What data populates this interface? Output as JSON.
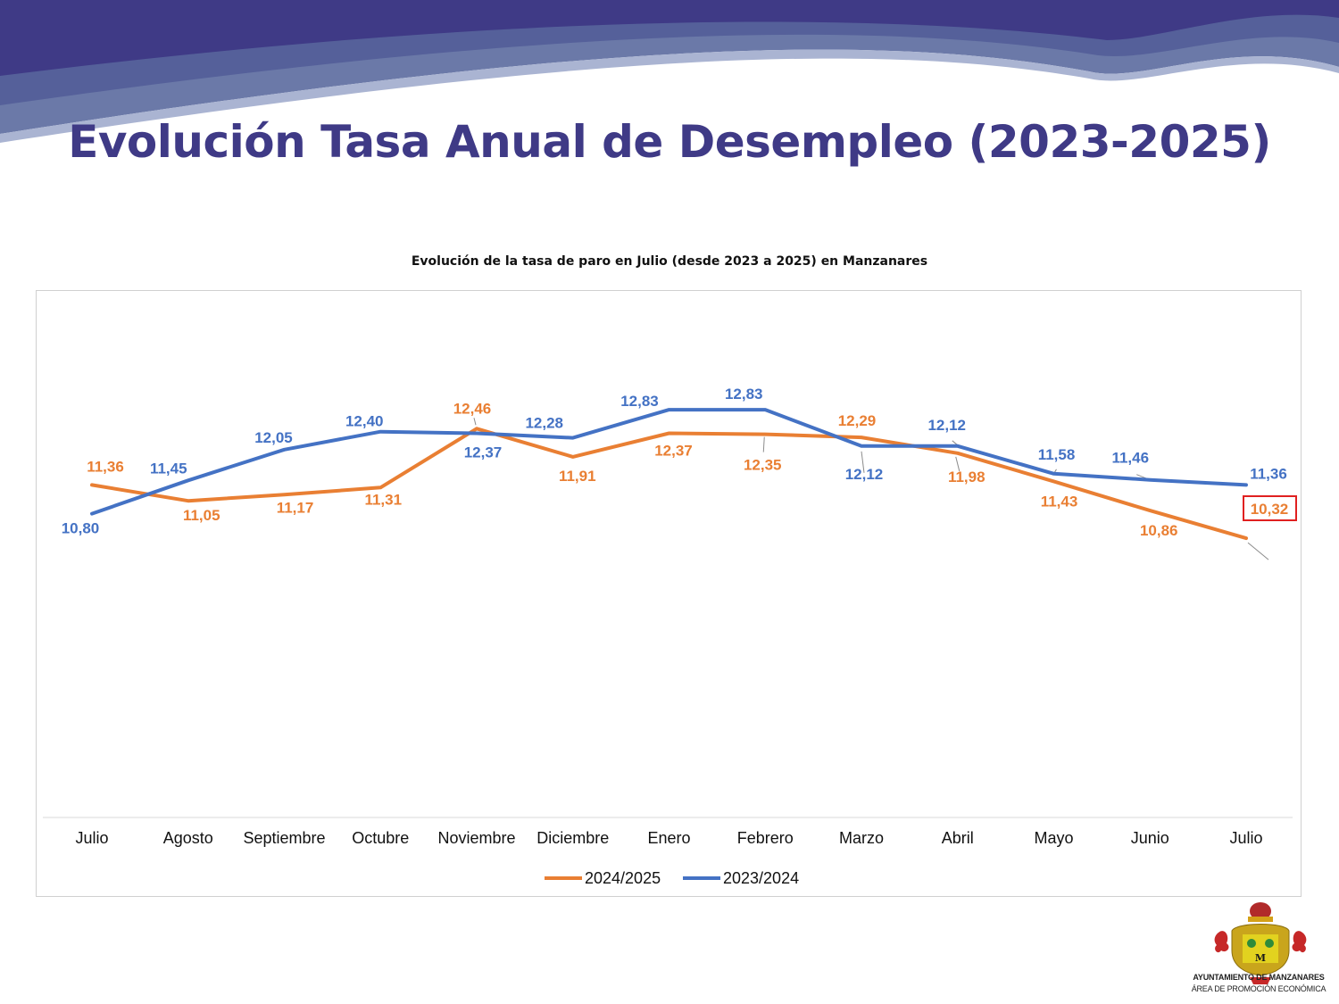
{
  "page_title": "Evolución Tasa Anual de Desempleo (2023-2025)",
  "colors": {
    "title": "#3f3a86",
    "series_2024_2025": "#e97f33",
    "series_2023_2024": "#4472c4",
    "highlight_box": "#e02020"
  },
  "chart_data": {
    "type": "line",
    "title": "Evolución de la tasa de paro en Julio (desde 2023 a  2025) en Manzanares",
    "xlabel": "",
    "ylabel": "",
    "ylim": [
      0,
      14
    ],
    "grid": false,
    "legend_position": "bottom",
    "categories": [
      "Julio",
      "Agosto",
      "Septiembre",
      "Octubre",
      "Noviembre",
      "Diciembre",
      "Enero",
      "Febrero",
      "Marzo",
      "Abril",
      "Mayo",
      "Junio",
      "Julio"
    ],
    "series": [
      {
        "name": "2024/2025",
        "color": "#e97f33",
        "values": [
          11.36,
          11.05,
          11.17,
          11.31,
          12.46,
          11.91,
          12.37,
          12.35,
          12.29,
          11.98,
          11.43,
          10.86,
          10.32
        ],
        "labels": [
          "11,36",
          "11,05",
          "11,17",
          "11,31",
          "12,46",
          "11,91",
          "12,37",
          "12,35",
          "12,29",
          "11,98",
          "11,43",
          "10,86",
          "10,32"
        ]
      },
      {
        "name": "2023/2024",
        "color": "#4472c4",
        "values": [
          10.8,
          11.45,
          12.05,
          12.4,
          12.37,
          12.28,
          12.83,
          12.83,
          12.12,
          12.12,
          11.58,
          11.46,
          11.36
        ],
        "labels": [
          "10,80",
          "11,45",
          "12,05",
          "12,40",
          "12,37",
          "12,28",
          "12,83",
          "12,83",
          "12,12",
          "12,12",
          "11,58",
          "11,46",
          "11,36"
        ]
      }
    ]
  },
  "logo": {
    "icon": "coat-of-arms-icon",
    "line1": "AYUNTAMIENTO DE MANZANARES",
    "line2": "ÁREA DE PROMOCIÓN ECONÓMICA"
  }
}
